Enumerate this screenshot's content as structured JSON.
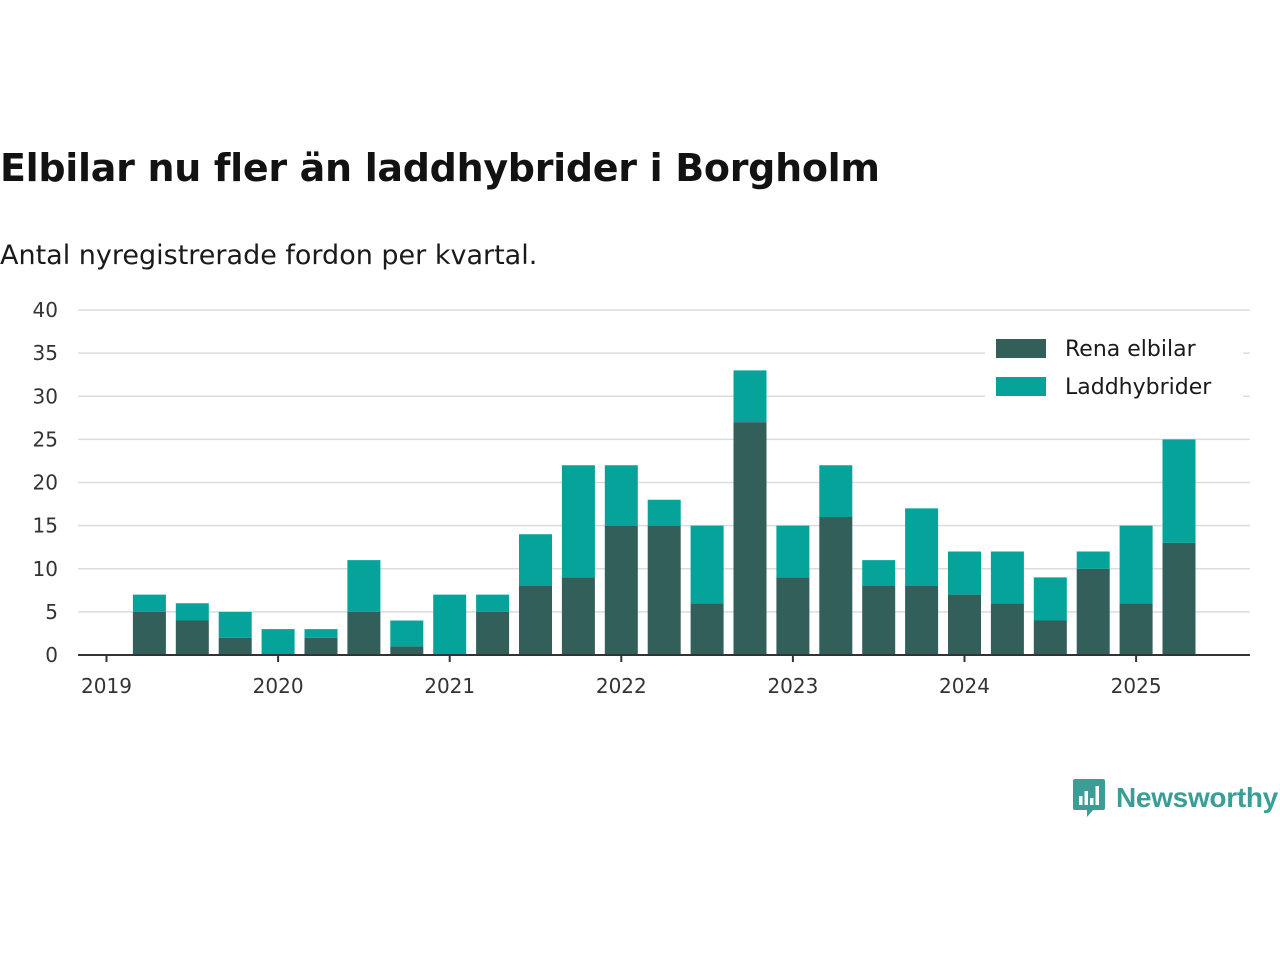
{
  "chart_data": {
    "type": "bar",
    "stacked": true,
    "title": "Elbilar nu fler än laddhybrider i Borgholm",
    "subtitle": "Antal nyregistrerade fordon per kvartal.",
    "xlabel": "",
    "ylabel": "",
    "ylim": [
      0,
      40
    ],
    "yticks": [
      0,
      5,
      10,
      15,
      20,
      25,
      30,
      35,
      40
    ],
    "x_tick_labels": [
      "2019",
      "2020",
      "2021",
      "2022",
      "2023",
      "2024",
      "2025"
    ],
    "categories": [
      "2019 Q1",
      "2019 Q2",
      "2019 Q3",
      "2019 Q4",
      "2020 Q1",
      "2020 Q2",
      "2020 Q3",
      "2020 Q4",
      "2021 Q1",
      "2021 Q2",
      "2021 Q3",
      "2021 Q4",
      "2022 Q1",
      "2022 Q2",
      "2022 Q3",
      "2022 Q4",
      "2023 Q1",
      "2023 Q2",
      "2023 Q3",
      "2023 Q4",
      "2024 Q1",
      "2024 Q2",
      "2024 Q3",
      "2024 Q4",
      "2025 Q1",
      "2025 Q2"
    ],
    "series": [
      {
        "name": "Rena elbilar",
        "color": "#335f5a",
        "values": [
          0,
          5,
          4,
          2,
          0,
          2,
          5,
          1,
          0,
          5,
          8,
          9,
          15,
          15,
          6,
          27,
          9,
          16,
          8,
          8,
          7,
          6,
          4,
          10,
          6,
          13
        ]
      },
      {
        "name": "Laddhybrider",
        "color": "#05a39a",
        "values": [
          0,
          2,
          2,
          3,
          3,
          1,
          6,
          3,
          7,
          2,
          6,
          13,
          7,
          3,
          9,
          6,
          6,
          6,
          3,
          9,
          5,
          6,
          5,
          2,
          9,
          12
        ]
      }
    ],
    "grid": true,
    "legend_position": "top-right"
  },
  "brand": {
    "name": "Newsworthy",
    "icon": "newsworthy-logo-icon",
    "color": "#3a9d96"
  }
}
